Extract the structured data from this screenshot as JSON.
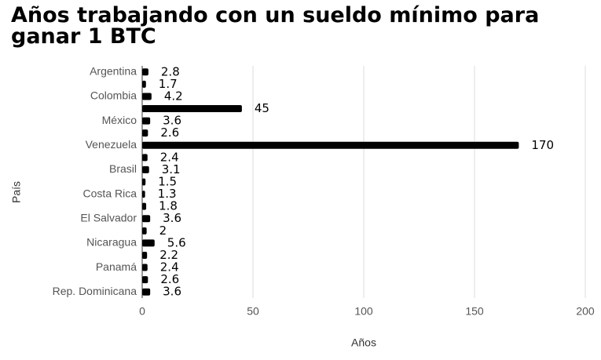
{
  "chart_data": {
    "type": "hbar",
    "title": "Años trabajando con un sueldo mínimo para ganar 1 BTC",
    "x_label": "Años",
    "y_label": "País",
    "categories": [
      "Argentina",
      null,
      "Colombia",
      null,
      "México",
      null,
      "Venezuela",
      null,
      "Brasil",
      null,
      "Costa Rica",
      null,
      "El Salvador",
      null,
      "Nicaragua",
      null,
      "Panamá",
      null,
      "Rep. Dominicana"
    ],
    "values": [
      2.8,
      1.7,
      4.2,
      45,
      3.6,
      2.6,
      170,
      2.4,
      3.1,
      1.5,
      1.3,
      1.8,
      3.6,
      2,
      5.6,
      2.2,
      2.4,
      2.6,
      3.6
    ],
    "color": "#000000",
    "xlim": [
      0,
      200
    ],
    "xticks": [
      0,
      50,
      100,
      150,
      200
    ],
    "grid": true
  }
}
